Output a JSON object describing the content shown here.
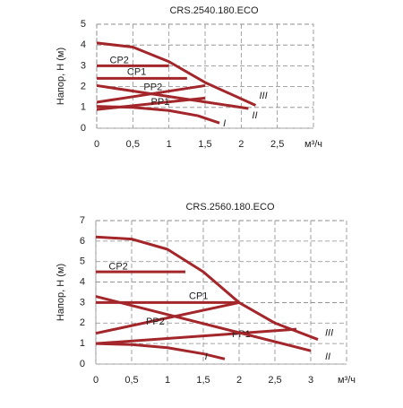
{
  "chart_data": [
    {
      "type": "line",
      "title": "CRS.2540.180.ECO",
      "y_label": "Напор, H (м)",
      "x_label": "м³/ч",
      "xlim": [
        0,
        3
      ],
      "ylim": [
        0,
        5
      ],
      "xticks": [
        0,
        {
          "value": 0.5,
          "label": "0,5"
        },
        1,
        {
          "value": 1.5,
          "label": "1,5"
        },
        2,
        {
          "value": 2.5,
          "label": "2,5"
        }
      ],
      "yticks": [
        0,
        1,
        2,
        3,
        4,
        5
      ],
      "grid": true,
      "series": [
        {
          "name": "CP2",
          "color": "#a3262a",
          "x": [
            0,
            1
          ],
          "values": [
            3,
            3
          ]
        },
        {
          "name": "CP1",
          "color": "#a3262a",
          "x": [
            0,
            1.25
          ],
          "values": [
            2.4,
            2.4
          ]
        },
        {
          "name": "PP2",
          "color": "#a3262a",
          "x": [
            0,
            1.5
          ],
          "values": [
            1.25,
            2.05
          ]
        },
        {
          "name": "PP1",
          "color": "#a3262a",
          "x": [
            0,
            1.5
          ],
          "values": [
            0.9,
            1.45
          ]
        },
        {
          "name": "III",
          "color": "#a3262a",
          "x": [
            0,
            0.5,
            1,
            1.5,
            2.2
          ],
          "values": [
            4.1,
            3.9,
            3.2,
            2.2,
            1.1
          ]
        },
        {
          "name": "II",
          "color": "#a3262a",
          "x": [
            0,
            2.1
          ],
          "values": [
            2.05,
            0.95
          ]
        },
        {
          "name": "I",
          "color": "#a3262a",
          "x": [
            0,
            0.5,
            1,
            1.4,
            1.7
          ],
          "values": [
            1.05,
            1.0,
            0.85,
            0.6,
            0.25
          ]
        }
      ]
    },
    {
      "type": "line",
      "title": "CRS.2560.180.ECO",
      "y_label": "Напор, H (м)",
      "x_label": "м³/ч",
      "xlim": [
        0,
        3.5
      ],
      "ylim": [
        0,
        7
      ],
      "xticks": [
        0,
        {
          "value": 0.5,
          "label": "0,5"
        },
        1,
        {
          "value": 1.5,
          "label": "1,5"
        },
        2,
        {
          "value": 2.5,
          "label": "2,5"
        },
        3
      ],
      "yticks": [
        0,
        1,
        2,
        3,
        4,
        5,
        6,
        7
      ],
      "grid": true,
      "series": [
        {
          "name": "CP2",
          "color": "#a3262a",
          "x": [
            0,
            1.25
          ],
          "values": [
            4.5,
            4.5
          ]
        },
        {
          "name": "CP1",
          "color": "#a3262a",
          "x": [
            0,
            2
          ],
          "values": [
            3,
            3
          ]
        },
        {
          "name": "PP2",
          "color": "#a3262a",
          "x": [
            0,
            2
          ],
          "values": [
            1.5,
            3
          ]
        },
        {
          "name": "PP1",
          "color": "#a3262a",
          "x": [
            0,
            2.8
          ],
          "values": [
            1,
            1.7
          ]
        },
        {
          "name": "III",
          "color": "#a3262a",
          "x": [
            0,
            0.5,
            1,
            1.5,
            2,
            2.5,
            3.1
          ],
          "values": [
            6.2,
            6.1,
            5.6,
            4.5,
            3,
            2,
            1.2
          ]
        },
        {
          "name": "II",
          "color": "#a3262a",
          "x": [
            0,
            3
          ],
          "values": [
            3.3,
            0.65
          ]
        },
        {
          "name": "I",
          "color": "#a3262a",
          "x": [
            0,
            0.5,
            1,
            1.5,
            1.8
          ],
          "values": [
            1,
            0.95,
            0.8,
            0.5,
            0.25
          ]
        }
      ]
    }
  ]
}
